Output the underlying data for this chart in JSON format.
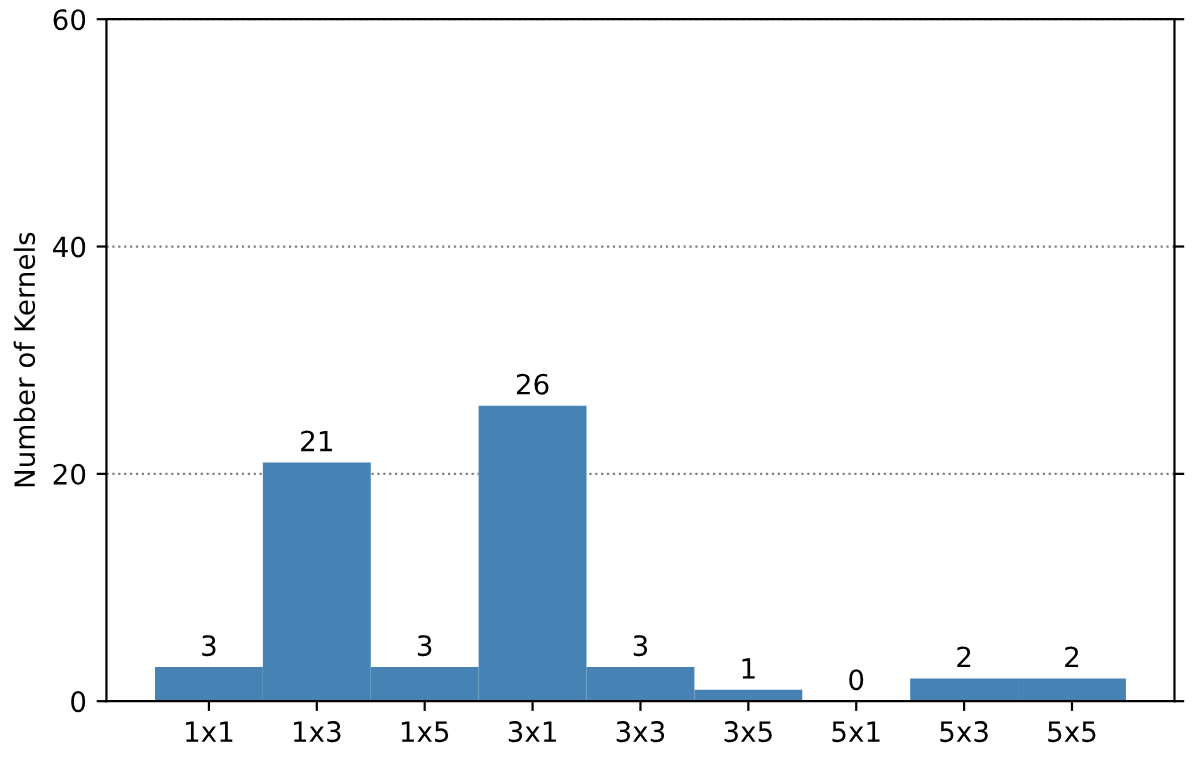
{
  "chart_data": {
    "type": "bar",
    "ylabel": "Number of Kernels",
    "categories": [
      "1x1",
      "1x3",
      "1x5",
      "3x1",
      "3x3",
      "3x5",
      "5x1",
      "5x3",
      "5x5"
    ],
    "values": [
      3,
      21,
      3,
      26,
      3,
      1,
      0,
      2,
      2
    ],
    "color": "#4682b4",
    "ylim": [
      0,
      60
    ],
    "yticks": [
      0,
      20,
      40,
      60
    ],
    "grid": "y",
    "data_labels": true
  }
}
